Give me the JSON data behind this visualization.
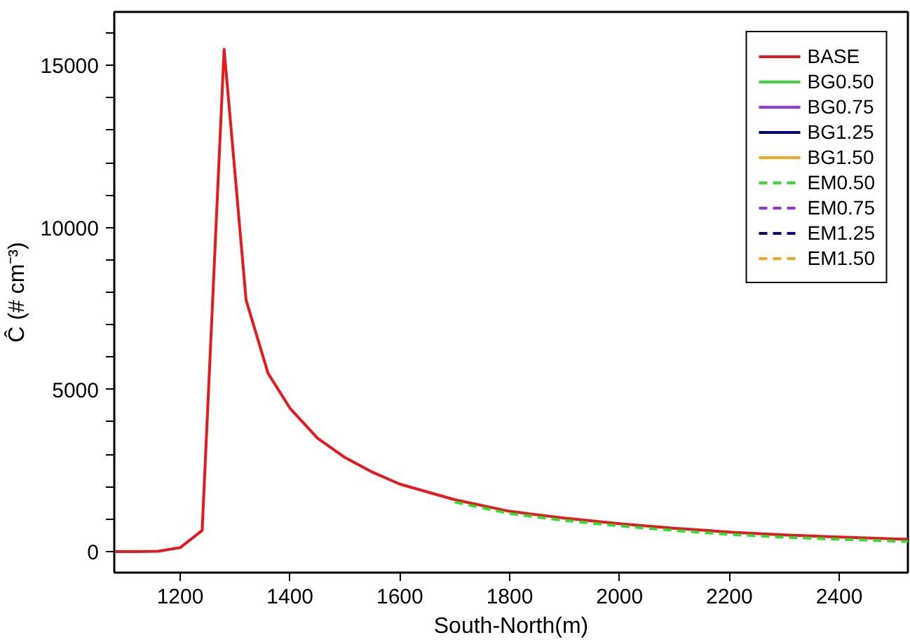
{
  "chart_data": {
    "type": "line",
    "xlabel": "South-North(m)",
    "ylabel": "Ĉ (# cm⁻³)",
    "x": [
      1080,
      1120,
      1160,
      1200,
      1240,
      1280,
      1320,
      1360,
      1400,
      1450,
      1500,
      1550,
      1600,
      1700,
      1800,
      1900,
      2000,
      2100,
      2200,
      2300,
      2400,
      2500,
      2525
    ],
    "series": [
      {
        "name": "BASE",
        "color": "#e41a1c",
        "line_style": "solid",
        "values": [
          0,
          0,
          10,
          120,
          650,
          15500,
          7760,
          5500,
          4420,
          3500,
          2900,
          2450,
          2080,
          1600,
          1240,
          1030,
          860,
          720,
          600,
          510,
          450,
          390,
          380
        ]
      },
      {
        "name": "BG0.50",
        "color": "#33dd33",
        "line_style": "solid",
        "values": [
          null,
          null,
          null,
          null,
          null,
          null,
          null,
          null,
          null,
          null,
          null,
          null,
          null,
          null,
          null,
          null,
          null,
          null,
          null,
          null,
          null,
          null,
          null
        ]
      },
      {
        "name": "BG0.75",
        "color": "#9933dd",
        "line_style": "solid",
        "values": [
          null,
          null,
          null,
          null,
          null,
          null,
          null,
          null,
          null,
          null,
          null,
          null,
          null,
          null,
          null,
          null,
          null,
          null,
          null,
          null,
          null,
          null,
          null
        ]
      },
      {
        "name": "BG1.25",
        "color": "#00008b",
        "line_style": "solid",
        "values": [
          null,
          null,
          null,
          null,
          null,
          null,
          null,
          null,
          null,
          null,
          null,
          null,
          null,
          null,
          null,
          null,
          null,
          null,
          null,
          null,
          null,
          null,
          null
        ]
      },
      {
        "name": "BG1.50",
        "color": "#f5a623",
        "line_style": "solid",
        "values": [
          null,
          null,
          null,
          null,
          null,
          null,
          null,
          null,
          null,
          null,
          null,
          null,
          null,
          null,
          null,
          null,
          null,
          null,
          null,
          null,
          null,
          null,
          null
        ]
      },
      {
        "name": "EM0.50",
        "color": "#33dd33",
        "line_style": "dashed",
        "values": [
          null,
          null,
          null,
          null,
          null,
          null,
          null,
          null,
          null,
          null,
          null,
          null,
          null,
          1530,
          1170,
          960,
          790,
          650,
          530,
          440,
          380,
          320,
          310
        ]
      },
      {
        "name": "EM0.75",
        "color": "#9933dd",
        "line_style": "dashed",
        "values": [
          null,
          null,
          null,
          null,
          null,
          null,
          null,
          null,
          null,
          null,
          null,
          null,
          null,
          null,
          null,
          null,
          null,
          null,
          null,
          null,
          null,
          null,
          null
        ]
      },
      {
        "name": "EM1.25",
        "color": "#00008b",
        "line_style": "dashed",
        "values": [
          null,
          null,
          null,
          null,
          null,
          null,
          null,
          null,
          null,
          null,
          null,
          null,
          null,
          null,
          null,
          null,
          null,
          null,
          null,
          null,
          null,
          null,
          null
        ]
      },
      {
        "name": "EM1.50",
        "color": "#f5a623",
        "line_style": "dashed",
        "values": [
          null,
          null,
          null,
          null,
          null,
          null,
          null,
          null,
          null,
          null,
          null,
          null,
          null,
          null,
          null,
          null,
          null,
          null,
          null,
          null,
          null,
          null,
          null
        ]
      }
    ],
    "xlim": [
      1080,
      2525
    ],
    "ylim": [
      -650,
      16650
    ],
    "xticks": [
      1200,
      1400,
      1600,
      1800,
      2000,
      2200,
      2400
    ],
    "yticks": [
      0,
      {
        "value": 1000,
        "label": null
      },
      {
        "value": 2000,
        "label": null
      },
      {
        "value": 3000,
        "label": null
      },
      {
        "value": 4000,
        "label": null
      },
      5000,
      {
        "value": 6000,
        "label": null
      },
      {
        "value": 7000,
        "label": null
      },
      {
        "value": 8000,
        "label": null
      },
      {
        "value": 9000,
        "label": null
      },
      10000,
      {
        "value": 11000,
        "label": null
      },
      {
        "value": 12000,
        "label": null
      },
      {
        "value": 13000,
        "label": null
      },
      {
        "value": 14000,
        "label": null
      },
      15000,
      {
        "value": 16000,
        "label": null
      }
    ],
    "grid": false,
    "legend": "top right"
  }
}
